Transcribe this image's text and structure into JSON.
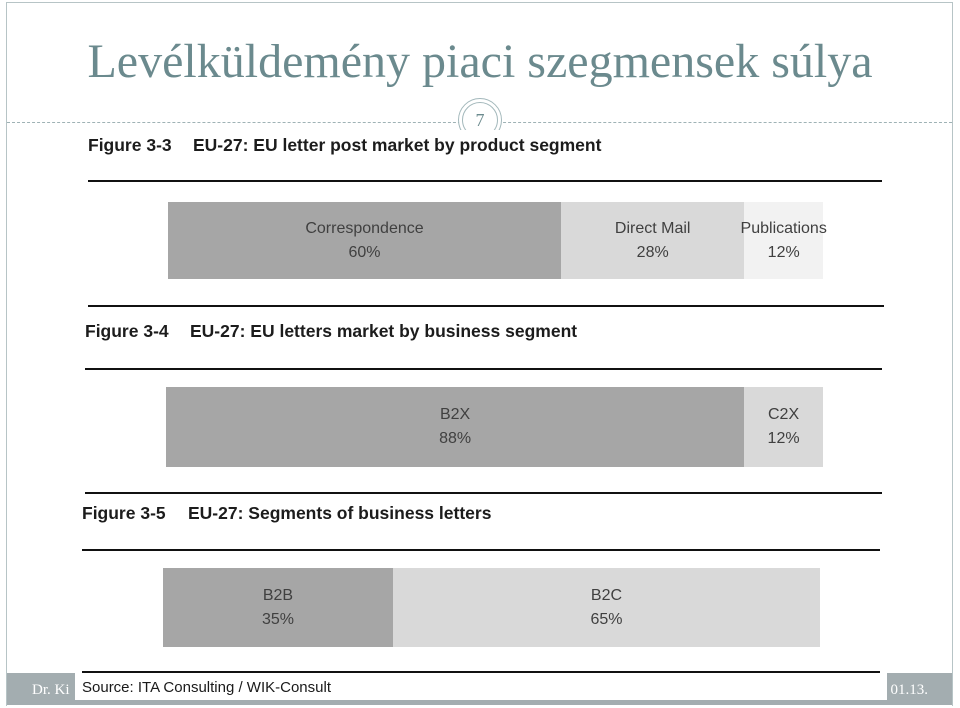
{
  "theme": {
    "title_color": "#6b8a8e",
    "footer_color": "#a3adb0",
    "frame_color": "#b7c4c6",
    "divider_color": "#9fb2b5",
    "badge_color": "#a3b8bb"
  },
  "slide": {
    "title": "Levélküldemény piaci szegmensek súlya",
    "page_number": "7"
  },
  "footer": {
    "left_text": "Dr. Ki",
    "right_text": "01.13."
  },
  "figure": {
    "source": "Source: ITA Consulting / WIK-Consult"
  },
  "chart_data": [
    {
      "type": "bar",
      "orientation": "horizontal",
      "stacked": true,
      "figure_number": "Figure 3-3",
      "title": "EU-27: EU letter post market by product segment",
      "categories": [
        "Correspondence",
        "Direct Mail",
        "Publications"
      ],
      "values": [
        60,
        28,
        12
      ],
      "unit": "%",
      "colors": [
        "#a6a6a6",
        "#d9d9d9",
        "#f2f2f2"
      ],
      "xlim": [
        0,
        100
      ],
      "grid": false
    },
    {
      "type": "bar",
      "orientation": "horizontal",
      "stacked": true,
      "figure_number": "Figure 3-4",
      "title": "EU-27: EU letters market by business segment",
      "categories": [
        "B2X",
        "C2X"
      ],
      "values": [
        88,
        12
      ],
      "unit": "%",
      "colors": [
        "#a6a6a6",
        "#d9d9d9"
      ],
      "xlim": [
        0,
        100
      ],
      "grid": false
    },
    {
      "type": "bar",
      "orientation": "horizontal",
      "stacked": true,
      "figure_number": "Figure 3-5",
      "title": "EU-27: Segments of business letters",
      "categories": [
        "B2B",
        "B2C"
      ],
      "values": [
        35,
        65
      ],
      "unit": "%",
      "colors": [
        "#a6a6a6",
        "#d9d9d9"
      ],
      "xlim": [
        0,
        100
      ],
      "grid": false
    }
  ]
}
